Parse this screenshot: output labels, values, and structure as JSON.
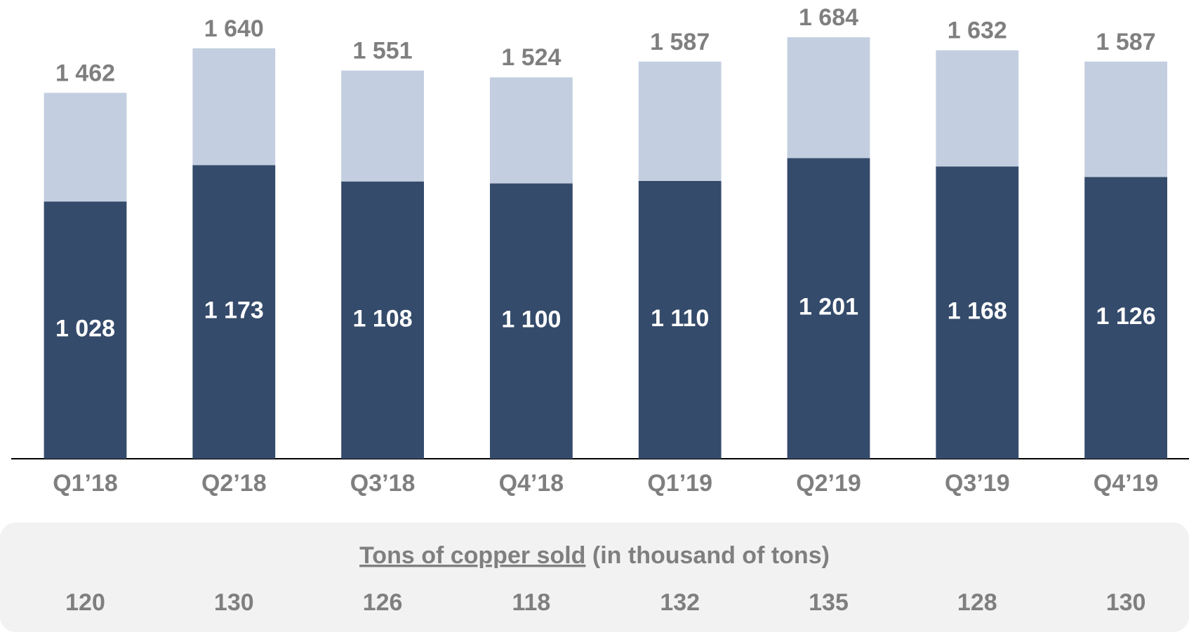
{
  "chart_data": {
    "type": "stacked_bar",
    "categories": [
      "Q1’18",
      "Q2’18",
      "Q3’18",
      "Q4’18",
      "Q1’19",
      "Q2’19",
      "Q3’19",
      "Q4’19"
    ],
    "series": [
      {
        "color": "#354b6b",
        "values": [
          1028,
          1173,
          1108,
          1100,
          1110,
          1201,
          1168,
          1126
        ],
        "value_labels": [
          "1 028",
          "1 173",
          "1 108",
          "1 100",
          "1 110",
          "1 201",
          "1 168",
          "1 126"
        ]
      },
      {
        "color": "#c3cfe0",
        "values": [
          434,
          467,
          443,
          424,
          477,
          483,
          464,
          461
        ]
      }
    ],
    "totals": [
      1462,
      1640,
      1551,
      1524,
      1587,
      1684,
      1632,
      1587
    ],
    "total_labels": [
      "1 462",
      "1 640",
      "1 551",
      "1 524",
      "1 587",
      "1 684",
      "1 632",
      "1 587"
    ],
    "ylim": [
      0,
      1833
    ]
  },
  "copper_sold": {
    "title_underlined": "Tons of copper sold",
    "title_rest": " (in thousand of tons)",
    "values": [
      "120",
      "130",
      "126",
      "118",
      "132",
      "135",
      "128",
      "130"
    ]
  }
}
